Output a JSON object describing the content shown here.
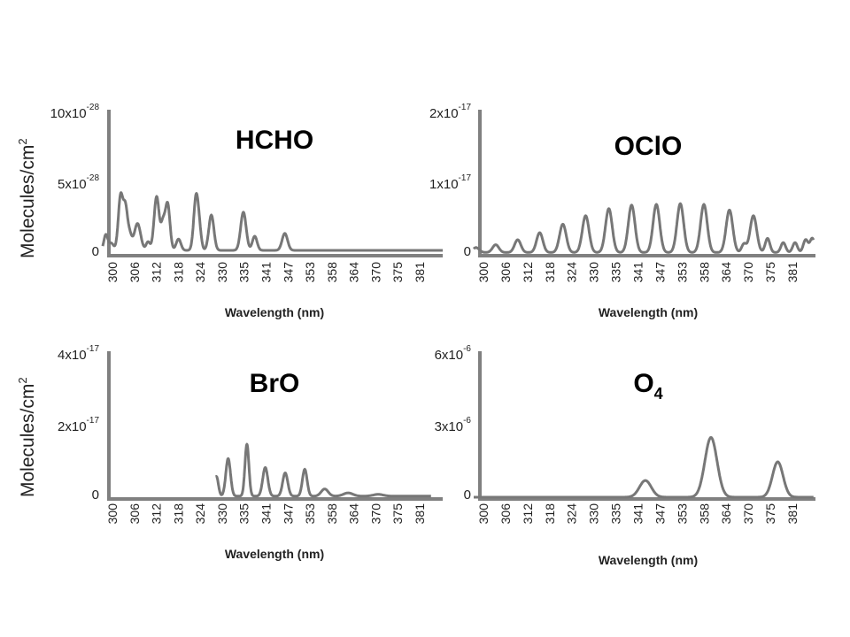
{
  "y_axis_label": {
    "text": "Molecules/cm",
    "sup": "2"
  },
  "chart_data": [
    {
      "type": "line",
      "title": "HCHO",
      "xlabel": "Wavelength (nm)",
      "x_ticks": [
        "300",
        "306",
        "312",
        "318",
        "324",
        "330",
        "335",
        "341",
        "347",
        "353",
        "358",
        "364",
        "370",
        "375",
        "381"
      ],
      "xlim": [
        300,
        387
      ],
      "ylim": [
        0,
        10
      ],
      "y_ticks": [
        {
          "value": 10,
          "base": "10x10",
          "exp": "-28"
        },
        {
          "value": 5,
          "base": "5x10",
          "exp": "-28"
        },
        {
          "value": 0,
          "base": "0",
          "exp": ""
        }
      ],
      "series": [
        {
          "name": "HCHO",
          "peaks": [
            [
              300.8,
              1.1,
              0.5
            ],
            [
              302.2,
              0.5,
              0.6
            ],
            [
              304.6,
              3.9,
              0.6
            ],
            [
              305.8,
              2.6,
              0.5
            ],
            [
              306.8,
              1.2,
              0.6
            ],
            [
              308.9,
              1.9,
              0.8
            ],
            [
              311.6,
              0.6,
              0.5
            ],
            [
              313.8,
              3.8,
              0.65
            ],
            [
              315.4,
              1.7,
              0.5
            ],
            [
              316.6,
              3.3,
              0.6
            ],
            [
              319.4,
              0.8,
              0.6
            ],
            [
              323.9,
              3.8,
              0.6
            ],
            [
              324.8,
              1.0,
              0.5
            ],
            [
              327.8,
              2.5,
              0.65
            ],
            [
              336.0,
              2.7,
              0.7
            ],
            [
              338.9,
              1.0,
              0.6
            ],
            [
              346.6,
              1.2,
              0.7
            ]
          ],
          "baseline": 0.25,
          "x_end": 387
        }
      ]
    },
    {
      "type": "line",
      "title": "OClO",
      "xlabel": "Wavelength (nm)",
      "x_ticks": [
        "300",
        "306",
        "312",
        "318",
        "324",
        "330",
        "335",
        "341",
        "347",
        "353",
        "358",
        "364",
        "370",
        "375",
        "381"
      ],
      "xlim": [
        300,
        387
      ],
      "ylim": [
        0,
        2
      ],
      "y_ticks": [
        {
          "value": 2,
          "base": "2x10",
          "exp": "-17"
        },
        {
          "value": 1,
          "base": "1x10",
          "exp": "-17"
        },
        {
          "value": 0,
          "base": "0",
          "exp": ""
        }
      ],
      "series": [
        {
          "name": "OClO",
          "peaks": [
            [
              300.6,
              0.07,
              0.8
            ],
            [
              305.6,
              0.11,
              0.8
            ],
            [
              311.2,
              0.18,
              0.8
            ],
            [
              316.8,
              0.28,
              0.8
            ],
            [
              322.7,
              0.4,
              0.85
            ],
            [
              328.5,
              0.52,
              0.85
            ],
            [
              334.4,
              0.62,
              0.85
            ],
            [
              340.2,
              0.67,
              0.85
            ],
            [
              346.5,
              0.68,
              0.85
            ],
            [
              352.6,
              0.69,
              0.85
            ],
            [
              358.6,
              0.68,
              0.85
            ],
            [
              365.1,
              0.6,
              0.85
            ],
            [
              371.2,
              0.52,
              0.85
            ],
            [
              368.8,
              0.12,
              0.6
            ],
            [
              374.8,
              0.2,
              0.6
            ],
            [
              378.8,
              0.14,
              0.6
            ],
            [
              381.8,
              0.14,
              0.6
            ],
            [
              384.5,
              0.18,
              0.6
            ],
            [
              386.2,
              0.2,
              0.6
            ]
          ],
          "baseline": 0.02,
          "x_end": 386.5
        }
      ]
    },
    {
      "type": "line",
      "title": "BrO",
      "xlabel": "Wavelength (nm)",
      "x_ticks": [
        "300",
        "306",
        "312",
        "318",
        "324",
        "330",
        "335",
        "341",
        "347",
        "353",
        "358",
        "364",
        "370",
        "375",
        "381"
      ],
      "xlim": [
        300,
        387
      ],
      "ylim": [
        0,
        4
      ],
      "y_ticks": [
        {
          "value": 4,
          "base": "4x10",
          "exp": "-17"
        },
        {
          "value": 2,
          "base": "2x10",
          "exp": "-17"
        },
        {
          "value": 0,
          "base": "0",
          "exp": ""
        }
      ],
      "series": [
        {
          "name": "BrO",
          "peaks": [
            [
              329.1,
              0.55,
              0.5
            ],
            [
              332.1,
              1.05,
              0.6
            ],
            [
              336.9,
              1.45,
              0.5
            ],
            [
              341.6,
              0.8,
              0.65
            ],
            [
              346.7,
              0.65,
              0.65
            ],
            [
              351.7,
              0.75,
              0.6
            ],
            [
              356.8,
              0.2,
              0.9
            ],
            [
              362.8,
              0.09,
              1.2
            ],
            [
              370.5,
              0.05,
              1.3
            ]
          ],
          "baseline": 0.03,
          "x_start": 329,
          "x_end": 384
        }
      ]
    },
    {
      "type": "line",
      "title": "O",
      "title_sub": "4",
      "xlabel": "Wavelength (nm)",
      "x_ticks": [
        "300",
        "306",
        "312",
        "318",
        "324",
        "330",
        "335",
        "341",
        "347",
        "353",
        "358",
        "364",
        "370",
        "375",
        "381"
      ],
      "xlim": [
        300,
        387
      ],
      "ylim": [
        0,
        6
      ],
      "y_ticks": [
        {
          "value": 6,
          "base": "6x10",
          "exp": "-6"
        },
        {
          "value": 3,
          "base": "3x10",
          "exp": "-6"
        },
        {
          "value": 0,
          "base": "0",
          "exp": ""
        }
      ],
      "series": [
        {
          "name": "O4",
          "peaks": [
            [
              343.7,
              0.7,
              1.5
            ],
            [
              360.4,
              2.5,
              1.55
            ],
            [
              377.4,
              1.48,
              1.35
            ]
          ],
          "baseline": 0.0,
          "x_end": 386.5
        }
      ]
    }
  ]
}
